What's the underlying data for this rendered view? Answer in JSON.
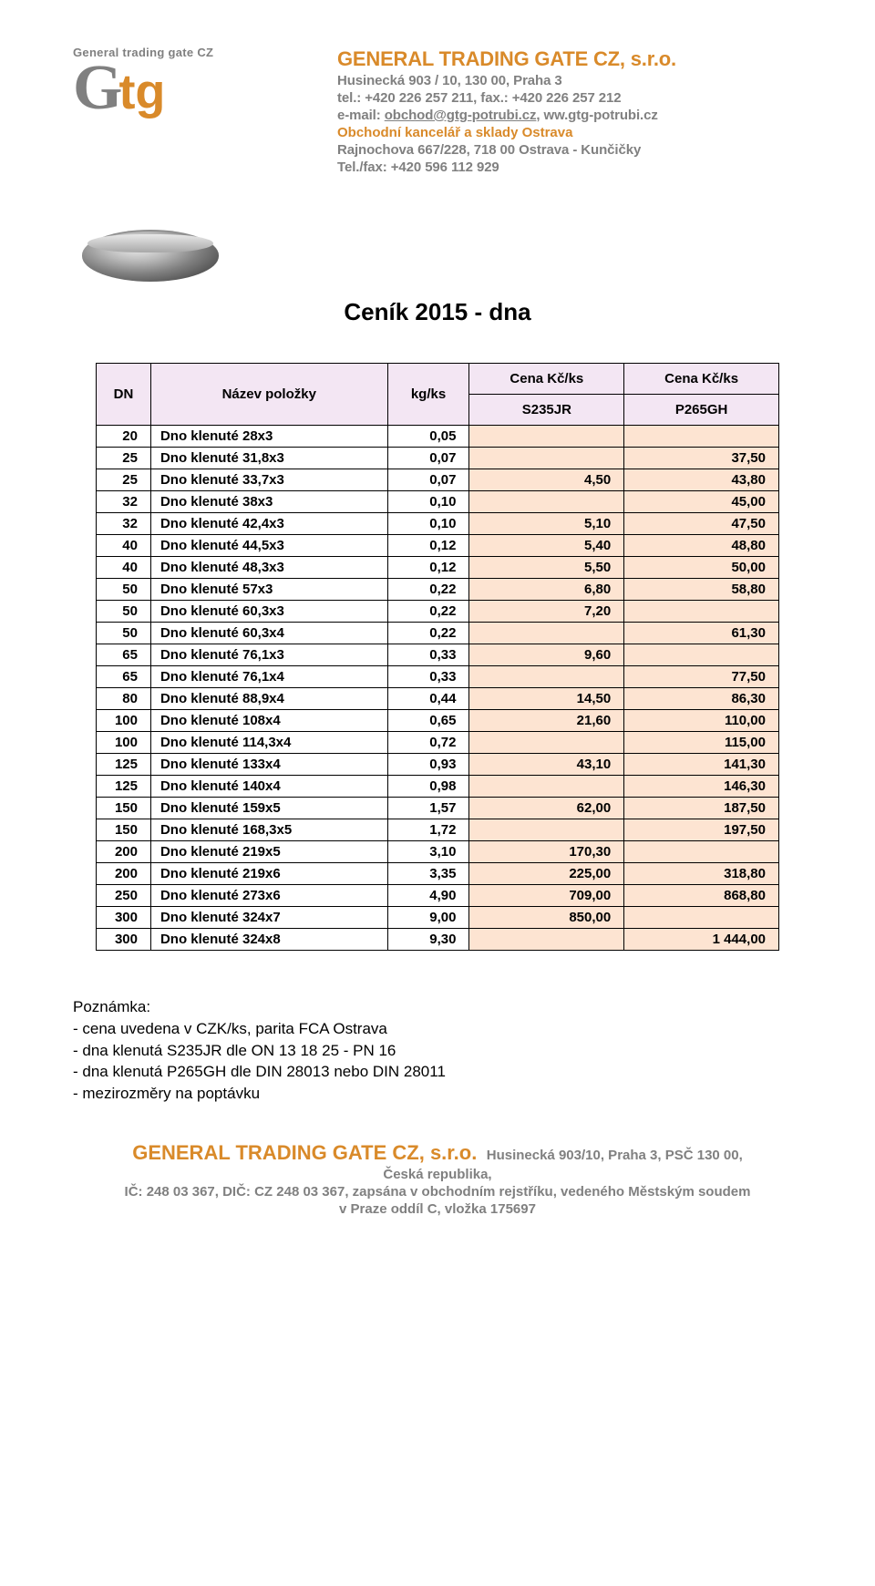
{
  "header": {
    "logo_sub": "General trading gate CZ",
    "logo_g": "G",
    "logo_tg": "tg",
    "company_name": "GENERAL TRADING GATE CZ, s.r.o.",
    "addr_line1": "Husinecká 903 / 10, 130 00, Praha 3",
    "tel_line": "tel.: +420 226 257  211, fax.: +420 226 257 212",
    "email_prefix": "e-mail: ",
    "email": "obchod@gtg-potrubi.cz",
    "email_suffix": ", ww.gtg-potrubi.cz",
    "office_title": "Obchodní kancelář a sklady Ostrava",
    "office_addr": "Rajnochova 667/228, 718 00 Ostrava - Kunčičky",
    "office_tel": "Tel./fax: +420 596 112 929"
  },
  "page_title": "Ceník 2015 - dna",
  "columns": {
    "dn": "DN",
    "name": "Název položky",
    "kg": "kg/ks",
    "price_top": "Cena Kč/ks",
    "price_top2": "Cena Kč/ks",
    "mat1": "S235JR",
    "mat2": "P265GH"
  },
  "rows": [
    {
      "dn": "20",
      "name": "Dno klenuté 28x3",
      "kg": "0,05",
      "p1": "",
      "p2": ""
    },
    {
      "dn": "25",
      "name": "Dno klenuté 31,8x3",
      "kg": "0,07",
      "p1": "",
      "p2": "37,50"
    },
    {
      "dn": "25",
      "name": "Dno klenuté 33,7x3",
      "kg": "0,07",
      "p1": "4,50",
      "p2": "43,80"
    },
    {
      "dn": "32",
      "name": "Dno klenuté 38x3",
      "kg": "0,10",
      "p1": "",
      "p2": "45,00"
    },
    {
      "dn": "32",
      "name": "Dno klenuté 42,4x3",
      "kg": "0,10",
      "p1": "5,10",
      "p2": "47,50"
    },
    {
      "dn": "40",
      "name": "Dno klenuté 44,5x3",
      "kg": "0,12",
      "p1": "5,40",
      "p2": "48,80"
    },
    {
      "dn": "40",
      "name": "Dno klenuté 48,3x3",
      "kg": "0,12",
      "p1": "5,50",
      "p2": "50,00"
    },
    {
      "dn": "50",
      "name": "Dno klenuté 57x3",
      "kg": "0,22",
      "p1": "6,80",
      "p2": "58,80"
    },
    {
      "dn": "50",
      "name": "Dno klenuté 60,3x3",
      "kg": "0,22",
      "p1": "7,20",
      "p2": ""
    },
    {
      "dn": "50",
      "name": "Dno klenuté 60,3x4",
      "kg": "0,22",
      "p1": "",
      "p2": "61,30"
    },
    {
      "dn": "65",
      "name": "Dno klenuté 76,1x3",
      "kg": "0,33",
      "p1": "9,60",
      "p2": ""
    },
    {
      "dn": "65",
      "name": "Dno klenuté 76,1x4",
      "kg": "0,33",
      "p1": "",
      "p2": "77,50"
    },
    {
      "dn": "80",
      "name": "Dno klenuté 88,9x4",
      "kg": "0,44",
      "p1": "14,50",
      "p2": "86,30"
    },
    {
      "dn": "100",
      "name": "Dno klenuté 108x4",
      "kg": "0,65",
      "p1": "21,60",
      "p2": "110,00"
    },
    {
      "dn": "100",
      "name": "Dno klenuté 114,3x4",
      "kg": "0,72",
      "p1": "",
      "p2": "115,00"
    },
    {
      "dn": "125",
      "name": "Dno klenuté 133x4",
      "kg": "0,93",
      "p1": "43,10",
      "p2": "141,30"
    },
    {
      "dn": "125",
      "name": "Dno klenuté 140x4",
      "kg": "0,98",
      "p1": "",
      "p2": "146,30"
    },
    {
      "dn": "150",
      "name": "Dno klenuté 159x5",
      "kg": "1,57",
      "p1": "62,00",
      "p2": "187,50"
    },
    {
      "dn": "150",
      "name": "Dno klenuté 168,3x5",
      "kg": "1,72",
      "p1": "",
      "p2": "197,50"
    },
    {
      "dn": "200",
      "name": "Dno klenuté 219x5",
      "kg": "3,10",
      "p1": "170,30",
      "p2": ""
    },
    {
      "dn": "200",
      "name": "Dno klenuté 219x6",
      "kg": "3,35",
      "p1": "225,00",
      "p2": "318,80"
    },
    {
      "dn": "250",
      "name": "Dno klenuté 273x6",
      "kg": "4,90",
      "p1": "709,00",
      "p2": "868,80"
    },
    {
      "dn": "300",
      "name": "Dno klenuté 324x7",
      "kg": "9,00",
      "p1": "850,00",
      "p2": ""
    },
    {
      "dn": "300",
      "name": "Dno klenuté 324x8",
      "kg": "9,30",
      "p1": "",
      "p2": "1 444,00"
    }
  ],
  "notes": {
    "heading": "Poznámka:",
    "l1": "- cena uvedena v CZK/ks, parita FCA Ostrava",
    "l2": "- dna klenutá S235JR dle ON 13 18 25 - PN 16",
    "l3": "- dna klenutá P265GH dle DIN 28013 nebo DIN 28011",
    "l4": "- mezirozměry na poptávku"
  },
  "footer": {
    "company": "GENERAL TRADING GATE CZ, s.r.o.",
    "addr1": "Husinecká  903/10, Praha 3, PSČ 130 00,",
    "l2": "Česká republika,",
    "l3": "IČ: 248 03 367, DIČ:  CZ 248 03 367, zapsána v obchodním rejstříku, vedeného Městským soudem",
    "l4": "v Praze oddíl C, vložka 175697"
  },
  "style": {
    "header_bg": "#f3e6f3",
    "price_bg": "#fde4d2",
    "accent": "#d98a2a",
    "grey": "#808080"
  }
}
